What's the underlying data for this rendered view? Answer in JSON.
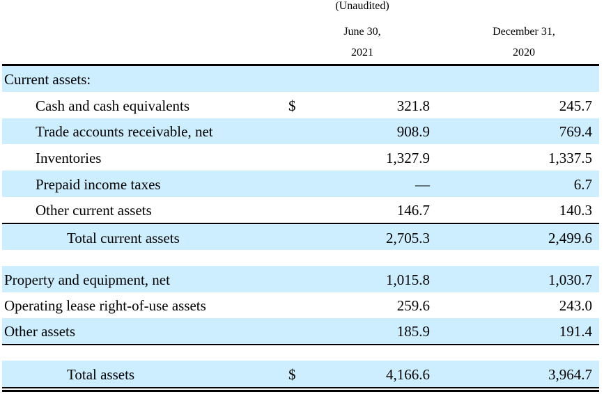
{
  "header": {
    "unaudited": "(Unaudited)",
    "col1_line1": "June 30,",
    "col1_line2": "2021",
    "col2_line1": "December 31,",
    "col2_line2": "2020"
  },
  "rows": {
    "current_assets": {
      "label": "Current assets:"
    },
    "cash": {
      "label": "Cash and cash equivalents",
      "currency": "$",
      "v2021": "321.8",
      "v2020": "245.7"
    },
    "receivables": {
      "label": "Trade accounts receivable, net",
      "v2021": "908.9",
      "v2020": "769.4"
    },
    "inventories": {
      "label": "Inventories",
      "v2021": "1,327.9",
      "v2020": "1,337.5"
    },
    "prepaid": {
      "label": "Prepaid income taxes",
      "v2021": "—",
      "v2020": "6.7"
    },
    "other_current": {
      "label": "Other current assets",
      "v2021": "146.7",
      "v2020": "140.3"
    },
    "total_current": {
      "label": "Total current assets",
      "v2021": "2,705.3",
      "v2020": "2,499.6"
    },
    "property": {
      "label": "Property and equipment, net",
      "v2021": "1,015.8",
      "v2020": "1,030.7"
    },
    "lease": {
      "label": "Operating lease right-of-use assets",
      "v2021": "259.6",
      "v2020": "243.0"
    },
    "other_assets": {
      "label": "Other assets",
      "v2021": "185.9",
      "v2020": "191.4"
    },
    "total_assets": {
      "label": "Total assets",
      "currency": "$",
      "v2021": "4,166.6",
      "v2020": "3,964.7"
    }
  },
  "colors": {
    "band": "#cceeff",
    "rule": "#000000"
  }
}
